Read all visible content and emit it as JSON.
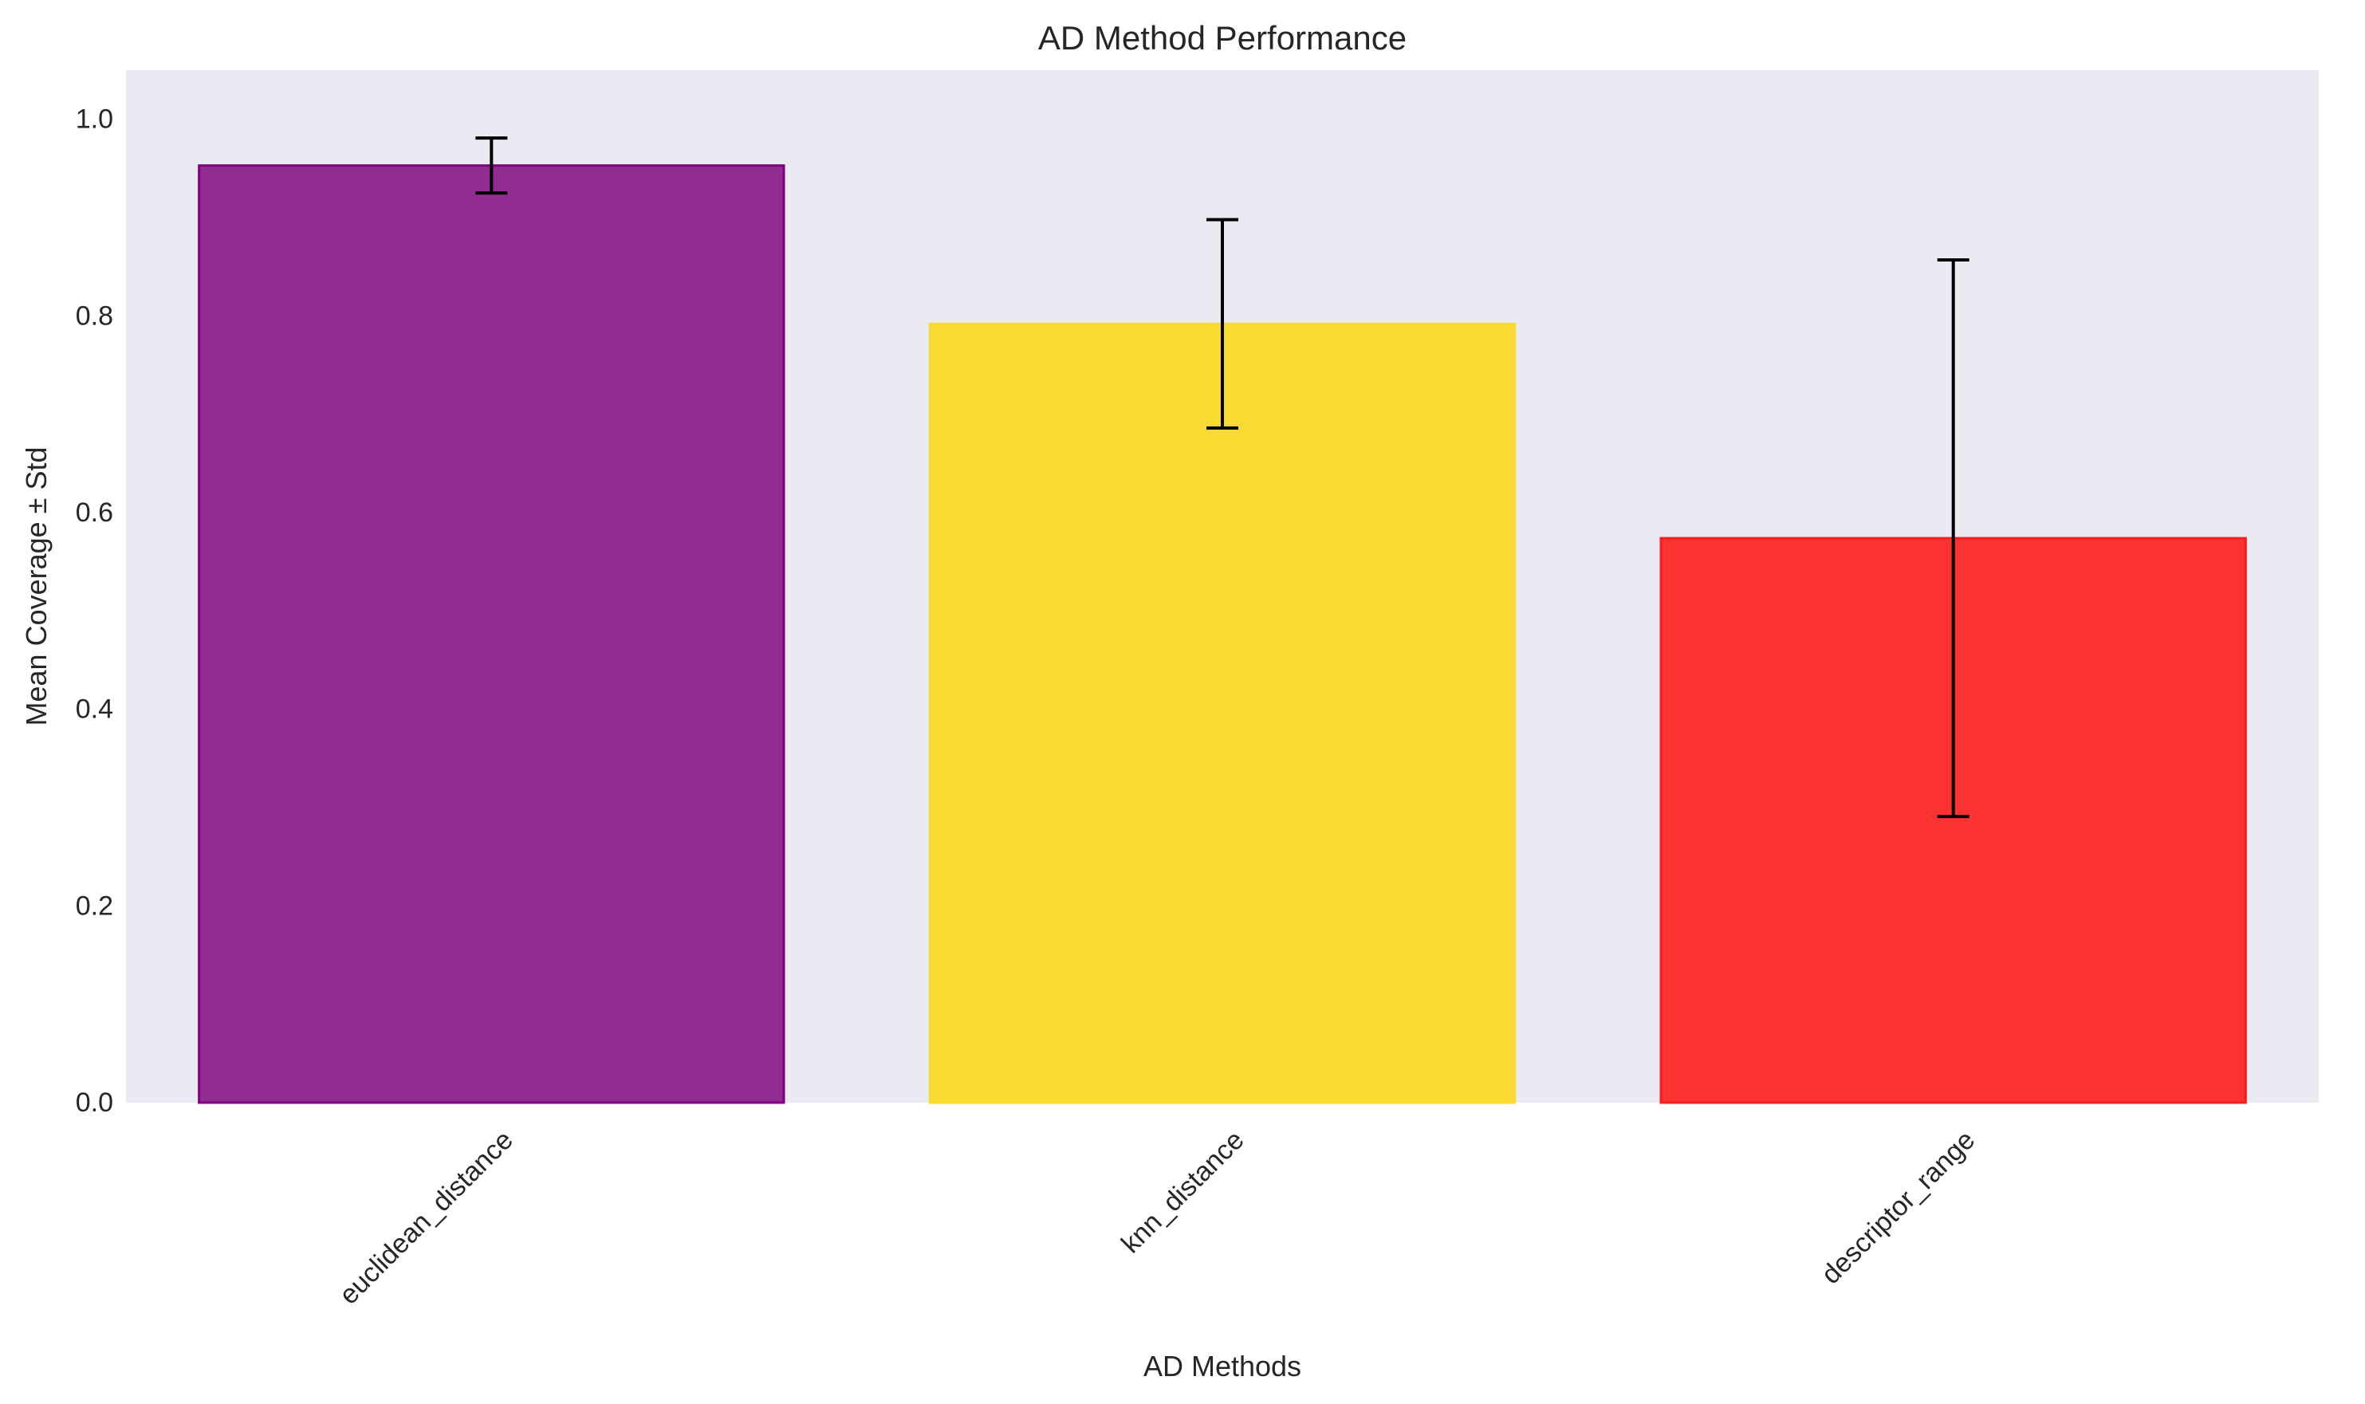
{
  "chart_data": {
    "type": "bar",
    "title": "AD Method Performance",
    "xlabel": "AD Methods",
    "ylabel": "Mean Coverage ± Std",
    "categories": [
      "euclidean_distance",
      "knn_distance",
      "descriptor_range"
    ],
    "values": [
      0.953,
      0.792,
      0.574
    ],
    "errors": [
      0.028,
      0.106,
      0.283
    ],
    "colors": [
      "#912d91",
      "#f9da32",
      "#fa3232"
    ],
    "edge_colors": [
      "#800080",
      "#f9da32",
      "#ee2020"
    ],
    "ylim": [
      0,
      1.05
    ],
    "yticks": [
      0.0,
      0.2,
      0.4,
      0.6,
      0.8,
      1.0
    ],
    "ytick_labels": [
      "0.0",
      "0.2",
      "0.4",
      "0.6",
      "0.8",
      "1.0"
    ],
    "grid": false,
    "legend": "none",
    "plot_background": "#eaeaf2"
  }
}
